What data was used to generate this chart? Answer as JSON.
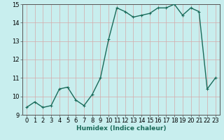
{
  "x": [
    0,
    1,
    2,
    3,
    4,
    5,
    6,
    7,
    8,
    9,
    10,
    11,
    12,
    13,
    14,
    15,
    16,
    17,
    18,
    19,
    20,
    21,
    22,
    23
  ],
  "y": [
    9.4,
    9.7,
    9.4,
    9.5,
    10.4,
    10.5,
    9.8,
    9.5,
    10.1,
    11.0,
    13.1,
    14.8,
    14.6,
    14.3,
    14.4,
    14.5,
    14.8,
    14.8,
    15.0,
    14.4,
    14.8,
    14.6,
    10.4,
    11.0
  ],
  "line_color": "#1a6b5a",
  "marker": "+",
  "marker_size": 3.5,
  "bg_color": "#c8eeee",
  "grid_color_major": "#e8c8c8",
  "grid_color_minor": "#ffffff",
  "xlabel": "Humidex (Indice chaleur)",
  "ylim": [
    9,
    15
  ],
  "xlim_min": -0.5,
  "xlim_max": 23.5,
  "yticks": [
    9,
    10,
    11,
    12,
    13,
    14,
    15
  ],
  "xticks": [
    0,
    1,
    2,
    3,
    4,
    5,
    6,
    7,
    8,
    9,
    10,
    11,
    12,
    13,
    14,
    15,
    16,
    17,
    18,
    19,
    20,
    21,
    22,
    23
  ],
  "xlabel_fontsize": 6.5,
  "tick_fontsize": 6,
  "linewidth": 1.0,
  "marker_linewidth": 0.8
}
